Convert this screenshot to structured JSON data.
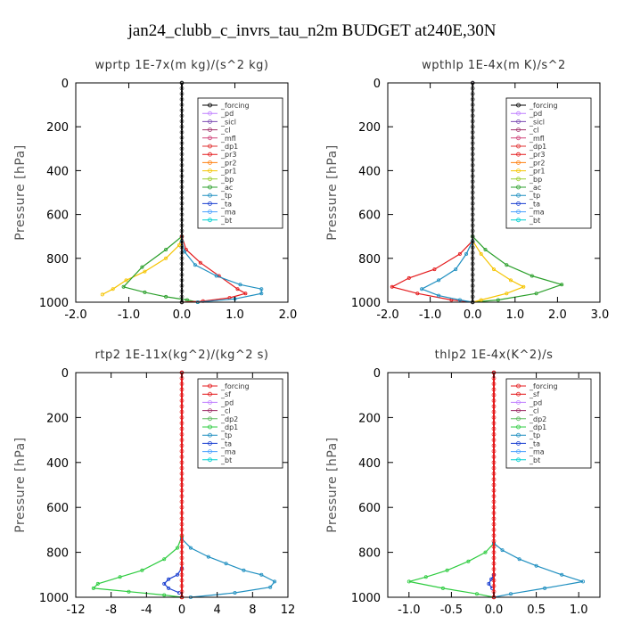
{
  "figure": {
    "title": "jan24_clubb_c_invrs_tau_n2m  BUDGET at240E,30N"
  },
  "chart_data": [
    {
      "id": "wprtp",
      "type": "line",
      "title": "wprtp  1E-7x(m kg)/(s^2 kg)",
      "ylabel": "Pressure [hPa]",
      "xlim": [
        -2,
        2
      ],
      "ylim": [
        1000,
        0
      ],
      "xticks": [
        -2,
        -1,
        0,
        1,
        2
      ],
      "xticklabels": [
        "-2.0",
        "-1.0",
        "0.0",
        "1.0",
        "2.0"
      ],
      "yticks": [
        0,
        200,
        400,
        600,
        800,
        1000
      ],
      "legend_entries": [
        "_forcing",
        "_pd",
        "_sicl",
        "_cl",
        "_mfl",
        "_dp1",
        "_pr3",
        "_pr2",
        "_pr1",
        "_bp",
        "_ac",
        "_tp",
        "_ta",
        "_ma",
        "_bt"
      ],
      "series": [
        {
          "name": "_pr1",
          "color": "#f5c400",
          "x": [
            0,
            0,
            -0.05,
            -0.3,
            -0.7,
            -1.05,
            -1.3,
            -1.5
          ],
          "y": [
            0,
            700,
            740,
            800,
            860,
            900,
            940,
            965
          ]
        },
        {
          "name": "_ac",
          "color": "#2ca02c",
          "x": [
            0,
            0,
            -0.3,
            -0.75,
            -1.1,
            -0.7,
            -0.3,
            0.1,
            0.3
          ],
          "y": [
            0,
            700,
            760,
            840,
            930,
            955,
            975,
            990,
            1000
          ]
        },
        {
          "name": "_pr3",
          "color": "#e41a1c",
          "x": [
            0,
            0,
            0.08,
            0.35,
            0.7,
            1.05,
            1.2,
            0.9,
            0.4,
            0
          ],
          "y": [
            0,
            700,
            760,
            820,
            880,
            940,
            960,
            980,
            995,
            1000
          ]
        },
        {
          "name": "_tp",
          "color": "#1f8fc0",
          "x": [
            0,
            0,
            0.05,
            0.25,
            0.65,
            1.1,
            1.5,
            1.5,
            1.0,
            0.3
          ],
          "y": [
            0,
            720,
            770,
            830,
            880,
            920,
            940,
            960,
            985,
            1000
          ]
        },
        {
          "name": "_forcing",
          "color": "#000000",
          "x": [
            0,
            0
          ],
          "y": [
            0,
            1000
          ]
        }
      ]
    },
    {
      "id": "wpthlp",
      "type": "line",
      "title": "wpthlp  1E-4x(m K)/s^2",
      "ylabel": "Pressure [hPa]",
      "xlim": [
        -2,
        3
      ],
      "ylim": [
        1000,
        0
      ],
      "xticks": [
        -2,
        -1,
        0,
        1,
        2,
        3
      ],
      "xticklabels": [
        "-2.0",
        "-1.0",
        "0.0",
        "1.0",
        "2.0",
        "3.0"
      ],
      "yticks": [
        0,
        200,
        400,
        600,
        800,
        1000
      ],
      "legend_entries": [
        "_forcing",
        "_pd",
        "_sicl",
        "_cl",
        "_mfl",
        "_dp1",
        "_pr3",
        "_pr2",
        "_pr1",
        "_bp",
        "_ac",
        "_tp",
        "_ta",
        "_ma",
        "_bt"
      ],
      "series": [
        {
          "name": "_ac",
          "color": "#2ca02c",
          "x": [
            0,
            0,
            0.3,
            0.8,
            1.4,
            2.1,
            1.5,
            0.6,
            0
          ],
          "y": [
            0,
            700,
            760,
            830,
            880,
            920,
            960,
            990,
            1000
          ]
        },
        {
          "name": "_pr1",
          "color": "#f5c400",
          "x": [
            0,
            0,
            0.2,
            0.5,
            0.9,
            1.2,
            0.8,
            0.2,
            0
          ],
          "y": [
            0,
            720,
            780,
            850,
            900,
            930,
            960,
            990,
            1000
          ]
        },
        {
          "name": "_pr3",
          "color": "#e41a1c",
          "x": [
            0,
            0,
            -0.3,
            -0.9,
            -1.5,
            -1.9,
            -1.3,
            -0.5,
            0
          ],
          "y": [
            0,
            720,
            780,
            850,
            890,
            930,
            960,
            990,
            1000
          ]
        },
        {
          "name": "_tp",
          "color": "#1f8fc0",
          "x": [
            0,
            0,
            -0.15,
            -0.4,
            -0.8,
            -1.2,
            -0.8,
            -0.3,
            0
          ],
          "y": [
            0,
            720,
            780,
            850,
            900,
            940,
            970,
            990,
            1000
          ]
        },
        {
          "name": "_pd",
          "color": "#c080ff",
          "x": [
            0,
            0
          ],
          "y": [
            0,
            1000
          ]
        },
        {
          "name": "_forcing",
          "color": "#000000",
          "x": [
            0,
            0
          ],
          "y": [
            0,
            1000
          ]
        }
      ]
    },
    {
      "id": "rtp2",
      "type": "line",
      "title": "rtp2  1E-11x(kg^2)/(kg^2 s)",
      "ylabel": "Pressure [hPa]",
      "xlim": [
        -12,
        12
      ],
      "ylim": [
        1000,
        0
      ],
      "xticks": [
        -12,
        -8,
        -4,
        0,
        4,
        8,
        12
      ],
      "xticklabels": [
        "-12",
        "-8",
        "-4",
        "0",
        "4",
        "8",
        "12"
      ],
      "yticks": [
        0,
        200,
        400,
        600,
        800,
        1000
      ],
      "legend_entries": [
        "_forcing",
        "_sf",
        "_pd",
        "_cl",
        "_dp2",
        "_dp1",
        "_tp",
        "_ta",
        "_ma",
        "_bt"
      ],
      "series": [
        {
          "name": "_dp1",
          "color": "#2ecc40",
          "x": [
            0,
            0,
            -0.5,
            -2,
            -4.5,
            -7,
            -9.5,
            -10,
            -6,
            -2,
            0
          ],
          "y": [
            0,
            730,
            780,
            830,
            880,
            910,
            940,
            960,
            975,
            990,
            1000
          ]
        },
        {
          "name": "_tp",
          "color": "#1f8fc0",
          "x": [
            0,
            0,
            1,
            3,
            5,
            7,
            9,
            10.5,
            10,
            6,
            1
          ],
          "y": [
            0,
            740,
            780,
            820,
            850,
            880,
            900,
            930,
            955,
            980,
            1000
          ]
        },
        {
          "name": "_ta",
          "color": "#1a3fd0",
          "x": [
            0,
            0,
            -0.5,
            -1.5,
            -2,
            -1.5,
            -0.3
          ],
          "y": [
            0,
            870,
            900,
            920,
            940,
            960,
            980
          ]
        },
        {
          "name": "_forcing",
          "color": "#e41a1c",
          "x": [
            0,
            0
          ],
          "y": [
            0,
            1000
          ]
        }
      ]
    },
    {
      "id": "thlp2",
      "type": "line",
      "title": "thlp2  1E-4x(K^2)/s",
      "ylabel": "Pressure [hPa]",
      "xlim": [
        -1.25,
        1.25
      ],
      "ylim": [
        1000,
        0
      ],
      "xticks": [
        -1.0,
        -0.5,
        0.0,
        0.5,
        1.0
      ],
      "xticklabels": [
        "-1.0",
        "-0.5",
        "0.0",
        "0.5",
        "1.0"
      ],
      "yticks": [
        0,
        200,
        400,
        600,
        800,
        1000
      ],
      "legend_entries": [
        "_forcing",
        "_sf",
        "_pd",
        "_cl",
        "_dp2",
        "_dp1",
        "_tp",
        "_ta",
        "_ma",
        "_bt"
      ],
      "series": [
        {
          "name": "_dp1",
          "color": "#2ecc40",
          "x": [
            0,
            0,
            -0.1,
            -0.3,
            -0.55,
            -0.8,
            -1.0,
            -0.6,
            -0.2,
            0
          ],
          "y": [
            0,
            760,
            800,
            840,
            880,
            910,
            930,
            960,
            985,
            1000
          ]
        },
        {
          "name": "_tp",
          "color": "#1f8fc0",
          "x": [
            0,
            0,
            0.1,
            0.3,
            0.5,
            0.8,
            1.05,
            0.6,
            0.2,
            0
          ],
          "y": [
            0,
            760,
            790,
            830,
            860,
            900,
            930,
            960,
            985,
            1000
          ]
        },
        {
          "name": "_ta",
          "color": "#1a3fd0",
          "x": [
            0,
            0,
            -0.03,
            -0.06,
            -0.02
          ],
          "y": [
            0,
            900,
            920,
            940,
            960
          ]
        },
        {
          "name": "_forcing",
          "color": "#e41a1c",
          "x": [
            0,
            0
          ],
          "y": [
            0,
            1000
          ]
        }
      ]
    }
  ]
}
